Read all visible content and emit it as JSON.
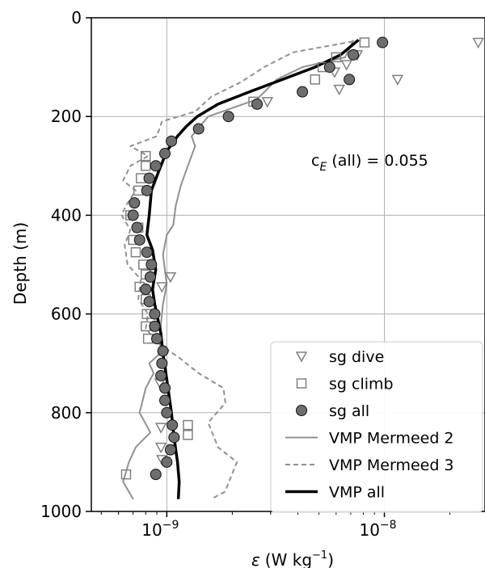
{
  "chart_data": {
    "type": "scatter",
    "xlabel_symbol": "ε",
    "xlabel_units": "(W kg",
    "xlabel_exp": "−1",
    "xlabel_close": ")",
    "ylabel": "Depth (m)",
    "xscale": "log",
    "xlim": [
      4.5e-10,
      2.9e-08
    ],
    "ylim": [
      1000,
      0
    ],
    "y_ticks": [
      0,
      200,
      400,
      600,
      800,
      1000
    ],
    "y_tick_labels": [
      "0",
      "200",
      "400",
      "600",
      "800",
      "1000"
    ],
    "x_ticks": [
      1e-09,
      1e-08
    ],
    "x_tick_bases": [
      "10",
      "10"
    ],
    "x_tick_exps": [
      "−9",
      "−8"
    ],
    "grid": true,
    "legend_position": "lower-right",
    "annotation": {
      "prefix": "c",
      "subscript": "E",
      "suffix": " (all) = 0.055"
    },
    "series": [
      {
        "name": "sg dive",
        "marker": "triangle-down",
        "color": "#808080",
        "points": [
          [
            2.7e-08,
            50
          ],
          [
            7.5e-09,
            75
          ],
          [
            6.7e-09,
            95
          ],
          [
            5.9e-09,
            110
          ],
          [
            1.15e-08,
            125
          ],
          [
            6.2e-09,
            145
          ],
          [
            2.9e-09,
            170
          ],
          [
            1.04e-09,
            525
          ],
          [
            9.5e-10,
            545
          ],
          [
            9.3e-10,
            740
          ],
          [
            9.4e-10,
            830
          ],
          [
            9.4e-10,
            870
          ],
          [
            9.5e-10,
            895
          ]
        ]
      },
      {
        "name": "sg climb",
        "marker": "square",
        "color": "#808080",
        "points": [
          [
            8.1e-09,
            50
          ],
          [
            6e-09,
            80
          ],
          [
            5.2e-09,
            100
          ],
          [
            4.8e-09,
            125
          ],
          [
            2.5e-09,
            170
          ],
          [
            8e-10,
            280
          ],
          [
            8e-10,
            300
          ],
          [
            7.6e-10,
            325
          ],
          [
            7.4e-10,
            350
          ],
          [
            6.8e-10,
            400
          ],
          [
            7.4e-10,
            425
          ],
          [
            7e-10,
            450
          ],
          [
            7.2e-10,
            475
          ],
          [
            7.8e-10,
            500
          ],
          [
            8e-10,
            520
          ],
          [
            7.5e-10,
            545
          ],
          [
            8e-10,
            570
          ],
          [
            8.1e-10,
            600
          ],
          [
            8e-10,
            625
          ],
          [
            8.2e-10,
            650
          ],
          [
            1.25e-09,
            825
          ],
          [
            1.25e-09,
            845
          ],
          [
            6.5e-10,
            925
          ]
        ]
      },
      {
        "name": "sg all",
        "marker": "circle",
        "color": "#6e6e6e",
        "points": [
          [
            9.8e-09,
            50
          ],
          [
            7.2e-09,
            75
          ],
          [
            5.6e-09,
            100
          ],
          [
            6.9e-09,
            125
          ],
          [
            4.2e-09,
            150
          ],
          [
            2.6e-09,
            175
          ],
          [
            1.92e-09,
            200
          ],
          [
            1.4e-09,
            225
          ],
          [
            1.05e-09,
            250
          ],
          [
            9.8e-10,
            275
          ],
          [
            8.9e-10,
            300
          ],
          [
            8.3e-10,
            325
          ],
          [
            8.1e-10,
            350
          ],
          [
            7.1e-10,
            375
          ],
          [
            7e-10,
            400
          ],
          [
            7.3e-10,
            425
          ],
          [
            7.5e-10,
            450
          ],
          [
            8.1e-10,
            475
          ],
          [
            8.5e-10,
            500
          ],
          [
            8.4e-10,
            525
          ],
          [
            8e-10,
            550
          ],
          [
            8.3e-10,
            575
          ],
          [
            8.8e-10,
            600
          ],
          [
            8.8e-10,
            625
          ],
          [
            9e-10,
            650
          ],
          [
            9.6e-10,
            675
          ],
          [
            9.5e-10,
            700
          ],
          [
            9.4e-10,
            725
          ],
          [
            9.8e-10,
            750
          ],
          [
            9.8e-10,
            775
          ],
          [
            1e-09,
            800
          ],
          [
            1.06e-09,
            825
          ],
          [
            1.08e-09,
            850
          ],
          [
            1.04e-09,
            875
          ],
          [
            1e-09,
            900
          ],
          [
            8.9e-10,
            925
          ]
        ]
      },
      {
        "name": "VMP Mermeed 2",
        "line": "solid",
        "color": "#909090",
        "width": 2,
        "points": [
          [
            7.2e-09,
            45
          ],
          [
            6.6e-09,
            80
          ],
          [
            4.2e-09,
            100
          ],
          [
            3.2e-09,
            125
          ],
          [
            2.6e-09,
            165
          ],
          [
            1.55e-09,
            200
          ],
          [
            1.3e-09,
            240
          ],
          [
            1.35e-09,
            260
          ],
          [
            1.25e-09,
            300
          ],
          [
            1.16e-09,
            340
          ],
          [
            1.1e-09,
            380
          ],
          [
            1.07e-09,
            420
          ],
          [
            1e-09,
            440
          ],
          [
            9.6e-10,
            480
          ],
          [
            1e-09,
            540
          ],
          [
            9.6e-10,
            580
          ],
          [
            9.4e-10,
            620
          ],
          [
            9.3e-10,
            680
          ],
          [
            8.3e-10,
            700
          ],
          [
            8.7e-10,
            720
          ],
          [
            8e-10,
            750
          ],
          [
            7.5e-10,
            800
          ],
          [
            8.4e-10,
            840
          ],
          [
            7.2e-10,
            870
          ],
          [
            6.7e-10,
            900
          ],
          [
            6.3e-10,
            940
          ],
          [
            7e-10,
            975
          ]
        ]
      },
      {
        "name": "VMP Mermeed 3",
        "line": "dashed",
        "color": "#909090",
        "width": 2,
        "points": [
          [
            7.8e-09,
            45
          ],
          [
            3.8e-09,
            70
          ],
          [
            2.8e-09,
            100
          ],
          [
            2.2e-09,
            130
          ],
          [
            1.6e-09,
            160
          ],
          [
            1.35e-09,
            190
          ],
          [
            9.5e-10,
            210
          ],
          [
            9e-10,
            240
          ],
          [
            6.8e-10,
            260
          ],
          [
            8.2e-10,
            280
          ],
          [
            6.8e-10,
            300
          ],
          [
            6.3e-10,
            330
          ],
          [
            7.2e-10,
            350
          ],
          [
            6.5e-10,
            380
          ],
          [
            6.2e-10,
            400
          ],
          [
            6.8e-10,
            430
          ],
          [
            6.4e-10,
            460
          ],
          [
            6.6e-10,
            500
          ],
          [
            7.6e-10,
            530
          ],
          [
            7.4e-10,
            570
          ],
          [
            8.2e-10,
            600
          ],
          [
            8e-10,
            630
          ],
          [
            9.2e-10,
            660
          ],
          [
            1.15e-09,
            690
          ],
          [
            1.4e-09,
            720
          ],
          [
            1.82e-09,
            750
          ],
          [
            1.86e-09,
            780
          ],
          [
            1.55e-09,
            820
          ],
          [
            1.72e-09,
            870
          ],
          [
            2.1e-09,
            900
          ],
          [
            1.85e-09,
            960
          ],
          [
            1.6e-09,
            975
          ]
        ]
      },
      {
        "name": "VMP all",
        "line": "solid",
        "color": "#000000",
        "width": 3.5,
        "points": [
          [
            7.6e-09,
            45
          ],
          [
            6.3e-09,
            75
          ],
          [
            4.8e-09,
            100
          ],
          [
            3.4e-09,
            125
          ],
          [
            2.4e-09,
            150
          ],
          [
            1.72e-09,
            175
          ],
          [
            1.38e-09,
            200
          ],
          [
            1.23e-09,
            220
          ],
          [
            1.12e-09,
            240
          ],
          [
            1e-09,
            270
          ],
          [
            9.2e-10,
            310
          ],
          [
            8.5e-10,
            350
          ],
          [
            8.3e-10,
            400
          ],
          [
            8.1e-10,
            440
          ],
          [
            8.6e-10,
            470
          ],
          [
            8.9e-10,
            510
          ],
          [
            8.6e-10,
            550
          ],
          [
            8.8e-10,
            580
          ],
          [
            9e-10,
            600
          ],
          [
            9.4e-10,
            640
          ],
          [
            9.6e-10,
            680
          ],
          [
            9.9e-10,
            720
          ],
          [
            1.02e-09,
            760
          ],
          [
            1.05e-09,
            800
          ],
          [
            1.08e-09,
            850
          ],
          [
            1.12e-09,
            900
          ],
          [
            1.14e-09,
            940
          ],
          [
            1.13e-09,
            975
          ]
        ]
      }
    ]
  }
}
